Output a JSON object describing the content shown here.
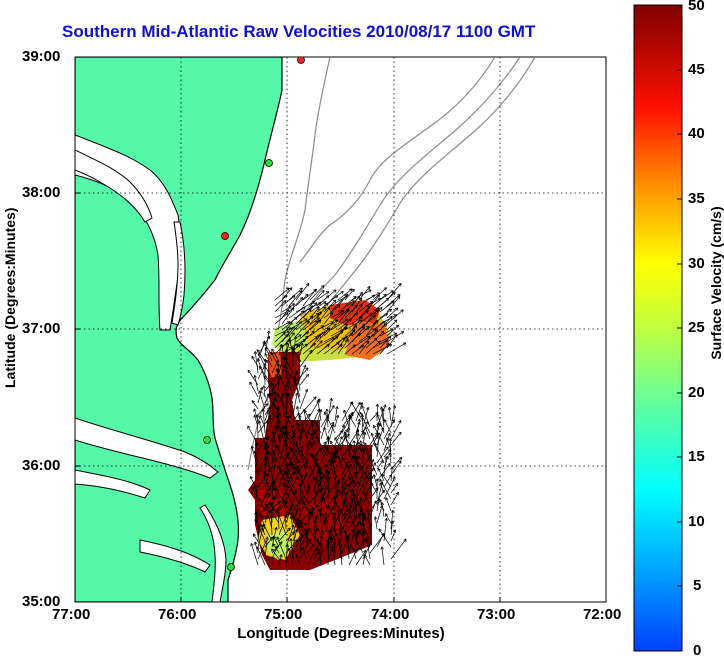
{
  "title": "Southern Mid-Atlantic Raw Velocities 2010/08/17 1100 GMT",
  "map": {
    "xlabel": "Longitude (Degrees:Minutes)",
    "ylabel": "Latitude (Degrees:Minutes)",
    "x_ticks": [
      "77:00",
      "76:00",
      "75:00",
      "74:00",
      "73:00",
      "72:00"
    ],
    "y_ticks": [
      "39:00",
      "38:00",
      "37:00",
      "36:00",
      "35:00"
    ],
    "lon_range": [
      -77,
      -72
    ],
    "lat_range": [
      35,
      39
    ],
    "grid": "dotted",
    "land_color": "#55f7a8",
    "coast_color": "#000000",
    "bathymetry_color": "#8a8a8a"
  },
  "colorbar": {
    "label": "Surface Velocity (cm/s)",
    "range": [
      0,
      50
    ],
    "ticks": [
      "50",
      "45",
      "40",
      "35",
      "30",
      "25",
      "20",
      "15",
      "10",
      "5",
      "0"
    ],
    "colormap": "jet",
    "placement": "right"
  },
  "stations": [
    {
      "color": "#ff2020"
    },
    {
      "color": "#30e030"
    },
    {
      "color": "#ff2020"
    },
    {
      "color": "#30e030"
    },
    {
      "color": "#30e030"
    }
  ]
}
